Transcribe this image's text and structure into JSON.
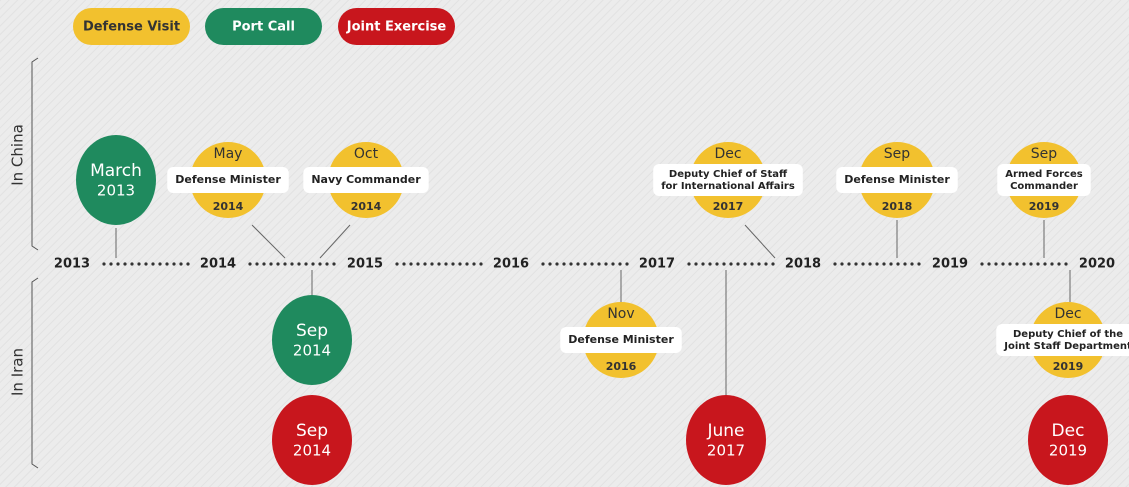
{
  "legend": [
    {
      "label": "Defense Visit",
      "color": "#f2c12e"
    },
    {
      "label": "Port Call",
      "color": "#1f8a5e"
    },
    {
      "label": "Joint Exercise",
      "color": "#c8161d"
    }
  ],
  "sections": [
    "In China",
    "In Iran"
  ],
  "years": [
    "2013",
    "2014",
    "2015",
    "2016",
    "2017",
    "2018",
    "2019",
    "2020"
  ],
  "events": [
    {
      "month": "March",
      "year": "2013",
      "color": "#1f8a5e"
    },
    {
      "month": "May",
      "title": [
        "Defense Minister"
      ],
      "year": "2014",
      "color": "#f2c12e"
    },
    {
      "month": "Oct",
      "title": [
        "Navy Commander"
      ],
      "year": "2014",
      "color": "#f2c12e"
    },
    {
      "month": "Dec",
      "title": [
        "Deputy Chief of Staff",
        "for International Affairs"
      ],
      "year": "2017",
      "color": "#f2c12e"
    },
    {
      "month": "Sep",
      "title": [
        "Defense Minister"
      ],
      "year": "2018",
      "color": "#f2c12e"
    },
    {
      "month": "Sep",
      "title": [
        "Armed Forces",
        "Commander"
      ],
      "year": "2019",
      "color": "#f2c12e"
    },
    {
      "month": "Sep",
      "year": "2014",
      "color": "#1f8a5e"
    },
    {
      "month": "Sep",
      "year": "2014",
      "color": "#c8161d"
    },
    {
      "month": "Nov",
      "title": [
        "Defense Minister"
      ],
      "year": "2016",
      "color": "#f2c12e"
    },
    {
      "month": "June",
      "year": "2017",
      "color": "#c8161d"
    },
    {
      "month": "Dec",
      "title": [
        "Deputy Chief of the",
        "Joint Staff Department"
      ],
      "year": "2019",
      "color": "#f2c12e"
    },
    {
      "month": "Dec",
      "year": "2019",
      "color": "#c8161d"
    }
  ]
}
